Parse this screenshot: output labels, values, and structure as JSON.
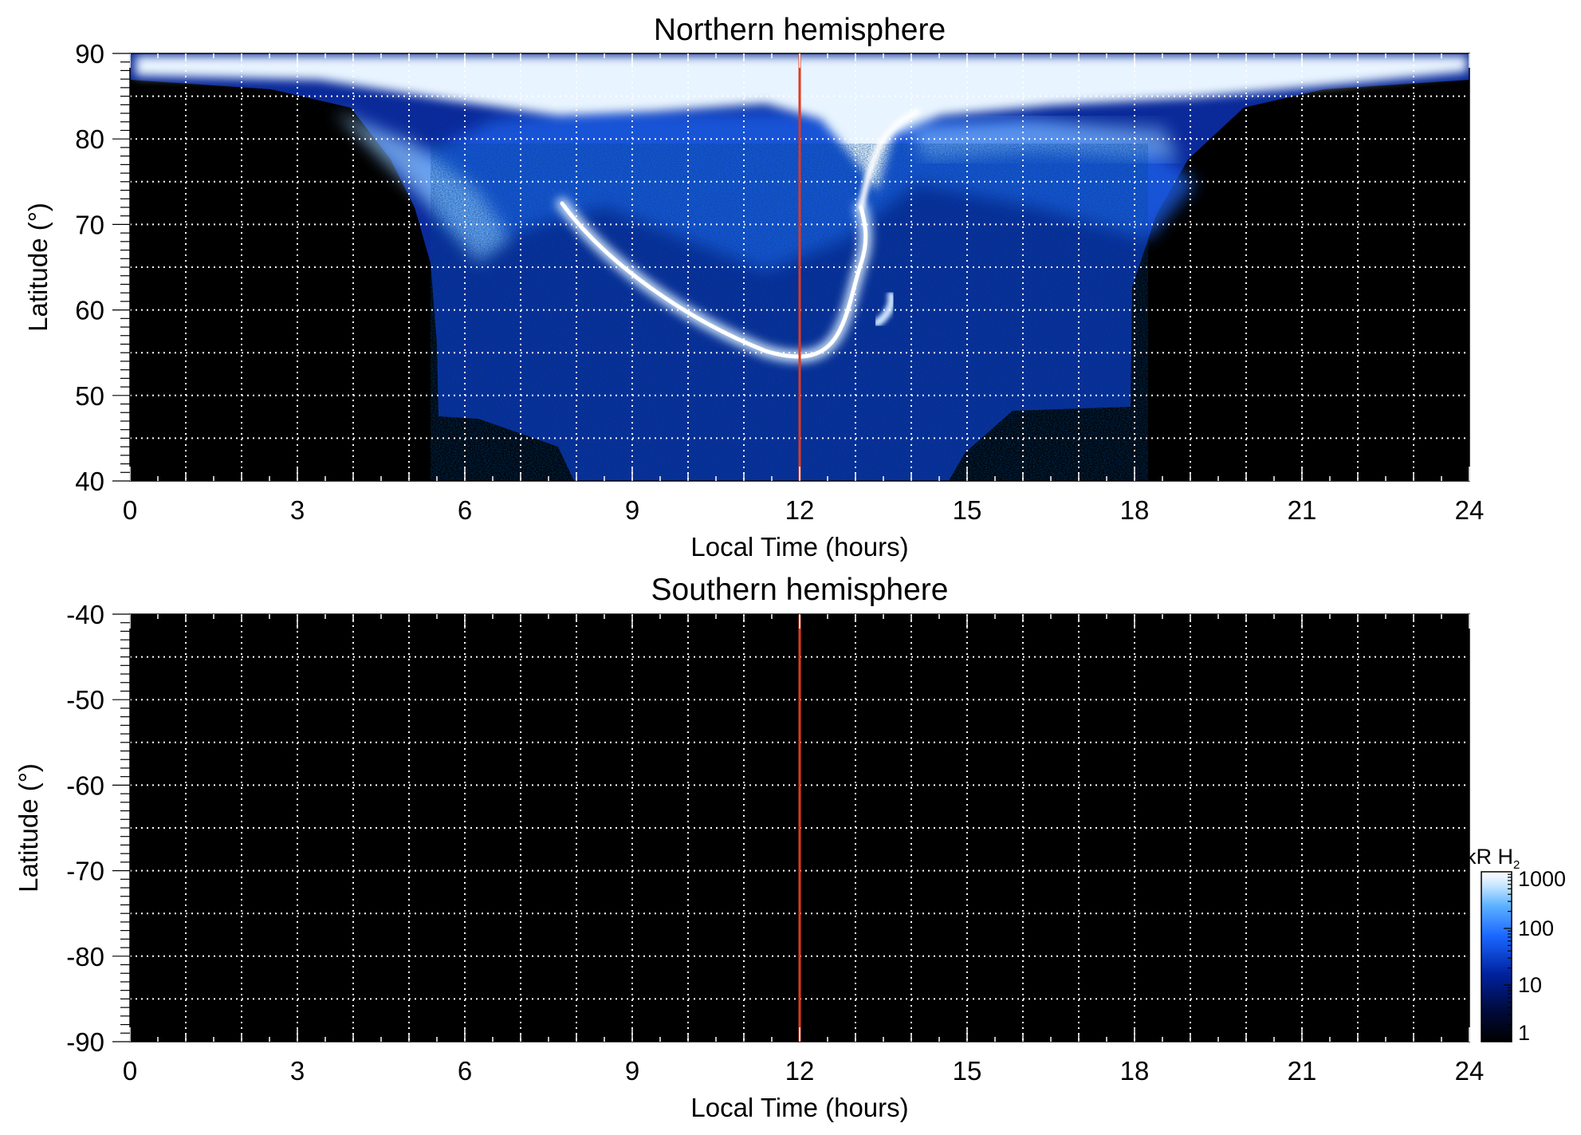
{
  "chart_data": [
    {
      "type": "heatmap",
      "title": "Northern hemisphere",
      "xlabel": "Local Time (hours)",
      "ylabel": "Latitude (°)",
      "xlim": [
        0,
        24
      ],
      "ylim": [
        40,
        90
      ],
      "x_ticks": [
        "0",
        "3",
        "6",
        "9",
        "12",
        "15",
        "18",
        "21",
        "24"
      ],
      "y_ticks": [
        "40",
        "50",
        "60",
        "70",
        "80",
        "90"
      ],
      "grid": true,
      "vertical_marker_x": 12,
      "vertical_marker_color": "#e03a1e",
      "description_of_emission": {
        "coverage_lt": [
          5.5,
          18
        ],
        "lowest_latitude": 40,
        "main_oval_arc_lat_at_lt": [
          [
            8,
            70
          ],
          [
            10,
            60
          ],
          [
            11.5,
            55
          ],
          [
            12,
            54.5
          ],
          [
            12.5,
            57
          ],
          [
            13,
            66
          ],
          [
            13,
            72
          ],
          [
            13.5,
            80
          ]
        ]
      }
    },
    {
      "type": "heatmap",
      "title": "Southern hemisphere",
      "xlabel": "Local Time (hours)",
      "ylabel": "Latitude (°)",
      "xlim": [
        0,
        24
      ],
      "ylim": [
        -90,
        -40
      ],
      "x_ticks": [
        "0",
        "3",
        "6",
        "9",
        "12",
        "15",
        "18",
        "21",
        "24"
      ],
      "y_ticks": [
        "-40",
        "-50",
        "-60",
        "-70",
        "-80",
        "-90"
      ],
      "grid": true,
      "vertical_marker_x": 12,
      "vertical_marker_color": "#e03a1e"
    }
  ],
  "colorbar": {
    "label_main": "kR H",
    "label_sub": "2",
    "scale": "log",
    "range": [
      1,
      1000
    ],
    "ticks": [
      "1000",
      "100",
      "10",
      "1"
    ],
    "colors": [
      "#000000",
      "#000a3a",
      "#0022a0",
      "#1a66ff",
      "#5cb2ff",
      "#c8e6ff",
      "#ffffff"
    ]
  }
}
